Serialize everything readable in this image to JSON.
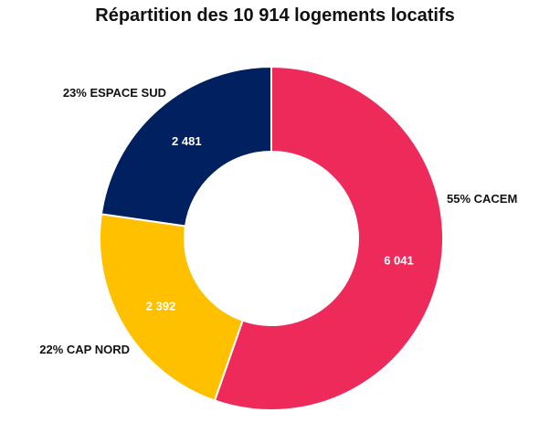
{
  "chart_data": {
    "type": "pie",
    "variant": "donut",
    "title": "Répartition des 10 914 logements locatifs",
    "slices": [
      {
        "name": "CACEM",
        "value": 6041,
        "value_label": "6 041",
        "percent_label": "55% CACEM",
        "color": "#EE2A5A"
      },
      {
        "name": "CAP NORD",
        "value": 2392,
        "value_label": "2 392",
        "percent_label": "22% CAP NORD",
        "color": "#FFC000"
      },
      {
        "name": "ESPACE SUD",
        "value": 2481,
        "value_label": "2 481",
        "percent_label": "23% ESPACE SUD",
        "color": "#002060"
      }
    ],
    "start": "top",
    "direction": "clockwise",
    "legend": "none"
  }
}
